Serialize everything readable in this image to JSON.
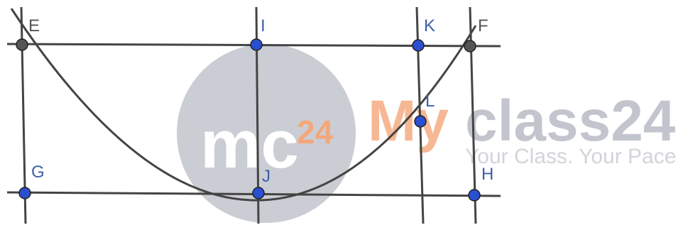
{
  "diagram": {
    "points": [
      {
        "id": "E",
        "label": "E",
        "dot_color": "#555555"
      },
      {
        "id": "I",
        "label": "I",
        "dot_color": "#2a4fd0"
      },
      {
        "id": "K",
        "label": "K",
        "dot_color": "#2a4fd0"
      },
      {
        "id": "F",
        "label": "F",
        "dot_color": "#555555"
      },
      {
        "id": "L",
        "label": "L",
        "dot_color": "#2a4fd0"
      },
      {
        "id": "G",
        "label": "G",
        "dot_color": "#2a4fd0"
      },
      {
        "id": "J",
        "label": "J",
        "dot_color": "#2a4fd0"
      },
      {
        "id": "H",
        "label": "H",
        "dot_color": "#2a4fd0"
      }
    ],
    "line_color": "#444444"
  },
  "watermark": {
    "logo_mc": "mc",
    "logo_24": "24",
    "brand_my": "My",
    "brand_class": "class24",
    "tagline": "Your Class. Your Pace"
  }
}
